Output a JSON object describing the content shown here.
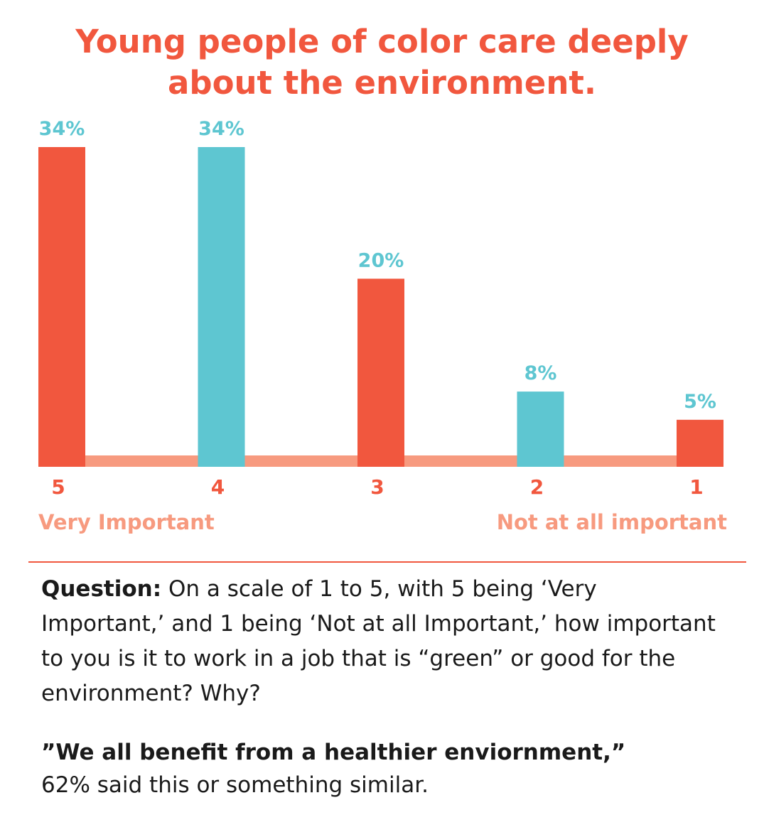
{
  "colors": {
    "coral": "#F1573E",
    "teal": "#5EC6D1",
    "salmon": "#F79A7F",
    "text": "#1a1a1a"
  },
  "chart_data": {
    "type": "bar",
    "title": "Young people of color care deeply about the environment.",
    "title_lines": [
      "Young people of color care deeply",
      "about the environment."
    ],
    "categories": [
      "5",
      "4",
      "3",
      "2",
      "1"
    ],
    "values": [
      34,
      34,
      20,
      8,
      5
    ],
    "value_labels": [
      "34%",
      "34%",
      "20%",
      "8%",
      "5%"
    ],
    "bar_colors": [
      "#F1573E",
      "#5EC6D1",
      "#F1573E",
      "#5EC6D1",
      "#F1573E"
    ],
    "ylim": [
      0,
      34
    ],
    "grid": false,
    "scale_ends": {
      "left": "Very Important",
      "right": "Not at all important"
    }
  },
  "question": {
    "label": "Question:",
    "text": " On a scale of 1 to 5, with 5 being ‘Very Important,’ and 1 being ‘Not at all Important,’ how important to you is it to work in a job that is “green” or good for the environment? Why?"
  },
  "quote": {
    "text": "”We all benefit from a healthier enviornment,”",
    "followup": "62% said this or something similar."
  }
}
